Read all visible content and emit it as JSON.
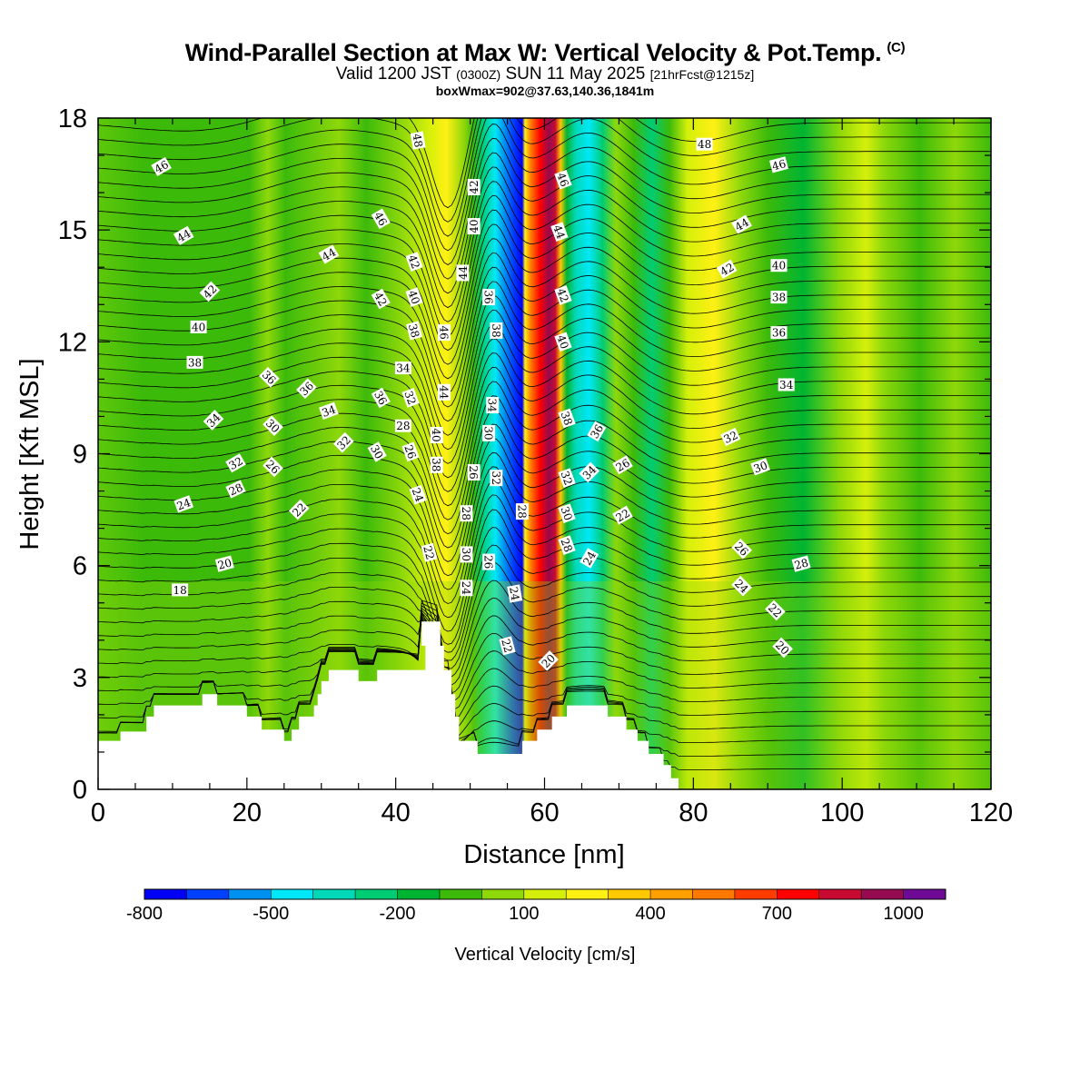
{
  "header": {
    "title_main": "Wind-Parallel Section at Max W: Vertical Velocity & Pot.Temp.",
    "title_mark": "(C)",
    "valid_prefix": "Valid 1200 JST",
    "valid_zulu": "(0300Z)",
    "valid_date": "SUN 11 May 2025",
    "forecast": "[21hrFcst@1215z]",
    "box_info": "boxWmax=902@37.63,140.36,1841m"
  },
  "colors": {
    "background_green": "#3cba0a",
    "terrain": "#ffffff",
    "contour": "#000000",
    "colorbar": [
      "#0000f5",
      "#0040ff",
      "#0090f0",
      "#00e8f8",
      "#00d8b8",
      "#00cc74",
      "#00b432",
      "#3cba0a",
      "#8ed80a",
      "#d4f00a",
      "#fff014",
      "#ffc800",
      "#ffa000",
      "#ff7800",
      "#ff3c00",
      "#ff0000",
      "#c80a32",
      "#960a50",
      "#6e0a96"
    ]
  },
  "chart_data": {
    "type": "cross-section",
    "xlabel": "Distance [nm]",
    "ylabel": "Height [Kft MSL]",
    "xlim": [
      0,
      120
    ],
    "ylim": [
      0,
      18
    ],
    "x_ticks": [
      "0",
      "20",
      "40",
      "60",
      "80",
      "100",
      "120"
    ],
    "y_ticks": [
      "0",
      "3",
      "6",
      "9",
      "12",
      "15",
      "18"
    ],
    "colorbar": {
      "label": "Vertical Velocity [cm/s]",
      "tick_labels": [
        "-800",
        "-500",
        "-200",
        "100",
        "400",
        "700",
        "1000"
      ]
    },
    "terrain_kft": [
      [
        0,
        1.3
      ],
      [
        3,
        1.3
      ],
      [
        3,
        1.55
      ],
      [
        6.5,
        1.55
      ],
      [
        6.5,
        1.95
      ],
      [
        7.5,
        1.95
      ],
      [
        7.5,
        2.25
      ],
      [
        14,
        2.25
      ],
      [
        14,
        2.55
      ],
      [
        16,
        2.55
      ],
      [
        16,
        2.25
      ],
      [
        20,
        2.25
      ],
      [
        20,
        1.95
      ],
      [
        22,
        1.95
      ],
      [
        22,
        1.6
      ],
      [
        25,
        1.6
      ],
      [
        25,
        1.3
      ],
      [
        26,
        1.3
      ],
      [
        26,
        1.6
      ],
      [
        27,
        1.6
      ],
      [
        27,
        1.95
      ],
      [
        29,
        1.95
      ],
      [
        29,
        2.25
      ],
      [
        29.5,
        2.25
      ],
      [
        29.5,
        2.55
      ],
      [
        30,
        2.55
      ],
      [
        30,
        2.9
      ],
      [
        31,
        2.9
      ],
      [
        31,
        3.2
      ],
      [
        35,
        3.2
      ],
      [
        35,
        2.9
      ],
      [
        37.5,
        2.9
      ],
      [
        37.5,
        3.2
      ],
      [
        44,
        3.2
      ],
      [
        44,
        3.85
      ],
      [
        43.5,
        3.85
      ],
      [
        43.5,
        4.5
      ],
      [
        46,
        4.5
      ],
      [
        46,
        3.85
      ],
      [
        46.5,
        3.85
      ],
      [
        46.5,
        3.2
      ],
      [
        47.5,
        3.2
      ],
      [
        47.5,
        2.55
      ],
      [
        48,
        2.55
      ],
      [
        48,
        1.95
      ],
      [
        48.5,
        1.95
      ],
      [
        48.5,
        1.3
      ],
      [
        51,
        1.3
      ],
      [
        51,
        0.95
      ],
      [
        57,
        0.95
      ],
      [
        57,
        1.3
      ],
      [
        59,
        1.3
      ],
      [
        59,
        1.6
      ],
      [
        61,
        1.6
      ],
      [
        61,
        1.95
      ],
      [
        63,
        1.95
      ],
      [
        63,
        2.25
      ],
      [
        68.5,
        2.25
      ],
      [
        68.5,
        1.95
      ],
      [
        71,
        1.95
      ],
      [
        71,
        1.6
      ],
      [
        72.5,
        1.6
      ],
      [
        72.5,
        1.3
      ],
      [
        74,
        1.3
      ],
      [
        74,
        0.95
      ],
      [
        76,
        0.95
      ],
      [
        76,
        0.65
      ],
      [
        77,
        0.65
      ],
      [
        77,
        0.3
      ],
      [
        78,
        0.3
      ],
      [
        78,
        0
      ],
      [
        120,
        0
      ]
    ],
    "theta_labels_c": [
      {
        "v": "46",
        "x": 8.5,
        "y": 16.7,
        "r": -30
      },
      {
        "v": "44",
        "x": 11.5,
        "y": 14.85,
        "r": -30
      },
      {
        "v": "42",
        "x": 15,
        "y": 13.35,
        "r": -45
      },
      {
        "v": "40",
        "x": 13.5,
        "y": 12.4,
        "r": 0
      },
      {
        "v": "38",
        "x": 13,
        "y": 11.45,
        "r": 0
      },
      {
        "v": "34",
        "x": 15.5,
        "y": 9.9,
        "r": -45
      },
      {
        "v": "32",
        "x": 18.5,
        "y": 8.75,
        "r": -30
      },
      {
        "v": "28",
        "x": 18.5,
        "y": 8.05,
        "r": -25
      },
      {
        "v": "24",
        "x": 11.5,
        "y": 7.65,
        "r": -20
      },
      {
        "v": "20",
        "x": 17,
        "y": 6.05,
        "r": -15
      },
      {
        "v": "18",
        "x": 11,
        "y": 5.35,
        "r": 0
      },
      {
        "v": "36",
        "x": 23,
        "y": 11.05,
        "r": 45
      },
      {
        "v": "30",
        "x": 23.5,
        "y": 9.75,
        "r": 45
      },
      {
        "v": "26",
        "x": 23.5,
        "y": 8.65,
        "r": 45
      },
      {
        "v": "22",
        "x": 27,
        "y": 7.5,
        "r": -45
      },
      {
        "v": "44",
        "x": 31,
        "y": 14.35,
        "r": -30
      },
      {
        "v": "36",
        "x": 28,
        "y": 10.75,
        "r": -45
      },
      {
        "v": "34",
        "x": 31,
        "y": 10.15,
        "r": -20
      },
      {
        "v": "32",
        "x": 33,
        "y": 9.3,
        "r": -45
      },
      {
        "v": "46",
        "x": 38,
        "y": 15.3,
        "r": 60
      },
      {
        "v": "42",
        "x": 38,
        "y": 13.15,
        "r": 60
      },
      {
        "v": "36",
        "x": 38,
        "y": 10.5,
        "r": 60
      },
      {
        "v": "30",
        "x": 37.5,
        "y": 9.05,
        "r": 60
      },
      {
        "v": "48",
        "x": 43,
        "y": 17.4,
        "r": 80
      },
      {
        "v": "42",
        "x": 42.5,
        "y": 14.15,
        "r": 70
      },
      {
        "v": "40",
        "x": 42.5,
        "y": 13.2,
        "r": 70
      },
      {
        "v": "38",
        "x": 42.5,
        "y": 12.3,
        "r": 75
      },
      {
        "v": "34",
        "x": 41,
        "y": 11.3,
        "r": 0
      },
      {
        "v": "32",
        "x": 42,
        "y": 10.5,
        "r": 70
      },
      {
        "v": "28",
        "x": 41,
        "y": 9.75,
        "r": 0
      },
      {
        "v": "26",
        "x": 42,
        "y": 9.05,
        "r": 70
      },
      {
        "v": "24",
        "x": 43,
        "y": 7.9,
        "r": 70
      },
      {
        "v": "22",
        "x": 44.5,
        "y": 6.35,
        "r": 75
      },
      {
        "v": "46",
        "x": 46.5,
        "y": 12.25,
        "r": 90
      },
      {
        "v": "44",
        "x": 46.5,
        "y": 10.65,
        "r": 90
      },
      {
        "v": "40",
        "x": 45.5,
        "y": 9.5,
        "r": 90
      },
      {
        "v": "38",
        "x": 45.5,
        "y": 8.7,
        "r": 90
      },
      {
        "v": "44",
        "x": 49,
        "y": 13.85,
        "r": -90
      },
      {
        "v": "42",
        "x": 50.5,
        "y": 16.15,
        "r": -90
      },
      {
        "v": "40",
        "x": 50.5,
        "y": 15.1,
        "r": -90
      },
      {
        "v": "36",
        "x": 52.5,
        "y": 13.2,
        "r": 90
      },
      {
        "v": "38",
        "x": 53.5,
        "y": 12.3,
        "r": 90
      },
      {
        "v": "34",
        "x": 53,
        "y": 10.3,
        "r": 90
      },
      {
        "v": "30",
        "x": 52.5,
        "y": 9.55,
        "r": 90
      },
      {
        "v": "32",
        "x": 53.5,
        "y": 8.35,
        "r": 90
      },
      {
        "v": "26",
        "x": 50.5,
        "y": 8.5,
        "r": 90
      },
      {
        "v": "28",
        "x": 49.5,
        "y": 7.4,
        "r": 90
      },
      {
        "v": "30",
        "x": 49.5,
        "y": 6.3,
        "r": 90
      },
      {
        "v": "24",
        "x": 49.5,
        "y": 5.4,
        "r": 90
      },
      {
        "v": "26",
        "x": 52.5,
        "y": 6.1,
        "r": 90
      },
      {
        "v": "28",
        "x": 57,
        "y": 7.45,
        "r": 90
      },
      {
        "v": "24",
        "x": 56,
        "y": 5.25,
        "r": 80
      },
      {
        "v": "22",
        "x": 55,
        "y": 3.85,
        "r": 75
      },
      {
        "v": "20",
        "x": 60.5,
        "y": 3.45,
        "r": -45
      },
      {
        "v": "46",
        "x": 62.5,
        "y": 16.35,
        "r": 70
      },
      {
        "v": "44",
        "x": 62,
        "y": 14.95,
        "r": 70
      },
      {
        "v": "42",
        "x": 62.5,
        "y": 13.25,
        "r": 70
      },
      {
        "v": "40",
        "x": 62.5,
        "y": 12,
        "r": 70
      },
      {
        "v": "38",
        "x": 63,
        "y": 9.95,
        "r": 70
      },
      {
        "v": "32",
        "x": 63,
        "y": 8.35,
        "r": 70
      },
      {
        "v": "30",
        "x": 63,
        "y": 7.4,
        "r": 70
      },
      {
        "v": "28",
        "x": 63,
        "y": 6.55,
        "r": 70
      },
      {
        "v": "36",
        "x": 67,
        "y": 9.6,
        "r": -60
      },
      {
        "v": "34",
        "x": 66,
        "y": 8.5,
        "r": -45
      },
      {
        "v": "24",
        "x": 66,
        "y": 6.2,
        "r": -60
      },
      {
        "v": "26",
        "x": 70.5,
        "y": 8.7,
        "r": -30
      },
      {
        "v": "22",
        "x": 70.5,
        "y": 7.35,
        "r": -30
      },
      {
        "v": "48",
        "x": 81.5,
        "y": 17.3,
        "r": 0
      },
      {
        "v": "46",
        "x": 91.5,
        "y": 16.75,
        "r": -15
      },
      {
        "v": "44",
        "x": 86.5,
        "y": 15.15,
        "r": -30
      },
      {
        "v": "42",
        "x": 84.5,
        "y": 13.95,
        "r": -30
      },
      {
        "v": "40",
        "x": 91.5,
        "y": 14.05,
        "r": 0
      },
      {
        "v": "38",
        "x": 91.5,
        "y": 13.2,
        "r": 0
      },
      {
        "v": "36",
        "x": 91.5,
        "y": 12.25,
        "r": 0
      },
      {
        "v": "34",
        "x": 92.5,
        "y": 10.85,
        "r": 0
      },
      {
        "v": "32",
        "x": 85,
        "y": 9.45,
        "r": -25
      },
      {
        "v": "30",
        "x": 89,
        "y": 8.65,
        "r": -20
      },
      {
        "v": "26",
        "x": 86.5,
        "y": 6.45,
        "r": 45
      },
      {
        "v": "24",
        "x": 86.5,
        "y": 5.45,
        "r": 45
      },
      {
        "v": "22",
        "x": 91,
        "y": 4.8,
        "r": 45
      },
      {
        "v": "20",
        "x": 92,
        "y": 3.8,
        "r": 45
      },
      {
        "v": "28",
        "x": 94.5,
        "y": 6.05,
        "r": -15
      }
    ]
  }
}
